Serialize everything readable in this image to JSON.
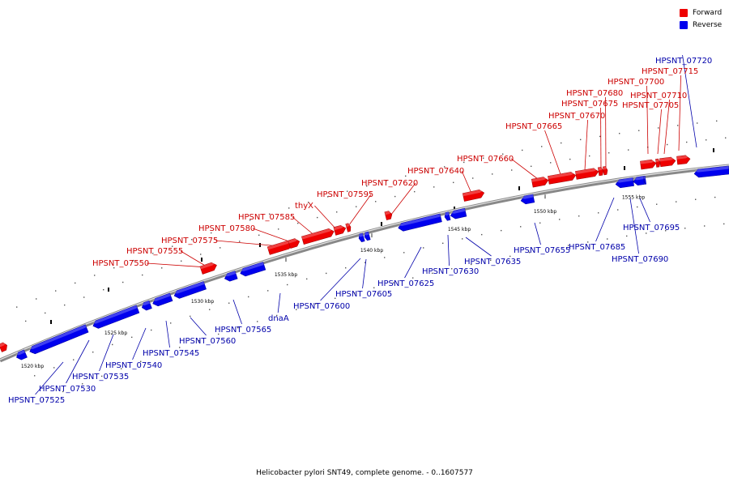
{
  "legend": [
    {
      "label": "Forward",
      "color": "#ee0000"
    },
    {
      "label": "Reverse",
      "color": "#0000ee"
    }
  ],
  "caption": "Helicobacter pylori SNT49, complete genome. - 0..1607577",
  "colors": {
    "forward": "#ee0000",
    "reverse": "#0000ee",
    "backbone": "#888888",
    "forward_label": "#cc0000",
    "reverse_label": "#0000aa"
  },
  "kbp_ticks": [
    "1520 kbp",
    "1525 kbp",
    "1530 kbp",
    "1535 kbp",
    "1540 kbp",
    "1545 kbp",
    "1550 kbp",
    "1555 kbp"
  ],
  "genes": [
    {
      "name": "HPSNT_07525",
      "strand": "reverse"
    },
    {
      "name": "HPSNT_07530",
      "strand": "reverse"
    },
    {
      "name": "HPSNT_07535",
      "strand": "reverse"
    },
    {
      "name": "HPSNT_07540",
      "strand": "reverse"
    },
    {
      "name": "HPSNT_07545",
      "strand": "reverse"
    },
    {
      "name": "HPSNT_07550",
      "strand": "forward"
    },
    {
      "name": "HPSNT_07555",
      "strand": "forward"
    },
    {
      "name": "HPSNT_07560",
      "strand": "reverse"
    },
    {
      "name": "HPSNT_07565",
      "strand": "reverse"
    },
    {
      "name": "dnaA",
      "strand": "reverse"
    },
    {
      "name": "HPSNT_07575",
      "strand": "forward"
    },
    {
      "name": "HPSNT_07580",
      "strand": "forward"
    },
    {
      "name": "HPSNT_07585",
      "strand": "forward"
    },
    {
      "name": "thyX",
      "strand": "forward"
    },
    {
      "name": "HPSNT_07595",
      "strand": "forward"
    },
    {
      "name": "HPSNT_07600",
      "strand": "reverse"
    },
    {
      "name": "HPSNT_07605",
      "strand": "reverse"
    },
    {
      "name": "HPSNT_07620",
      "strand": "forward"
    },
    {
      "name": "HPSNT_07625",
      "strand": "reverse"
    },
    {
      "name": "HPSNT_07630",
      "strand": "reverse"
    },
    {
      "name": "HPSNT_07635",
      "strand": "reverse"
    },
    {
      "name": "HPSNT_07640",
      "strand": "forward"
    },
    {
      "name": "HPSNT_07655",
      "strand": "reverse"
    },
    {
      "name": "HPSNT_07660",
      "strand": "forward"
    },
    {
      "name": "HPSNT_07665",
      "strand": "forward"
    },
    {
      "name": "HPSNT_07670",
      "strand": "forward"
    },
    {
      "name": "HPSNT_07675",
      "strand": "forward"
    },
    {
      "name": "HPSNT_07680",
      "strand": "forward"
    },
    {
      "name": "HPSNT_07685",
      "strand": "reverse"
    },
    {
      "name": "HPSNT_07690",
      "strand": "reverse"
    },
    {
      "name": "HPSNT_07695",
      "strand": "reverse"
    },
    {
      "name": "HPSNT_07700",
      "strand": "forward"
    },
    {
      "name": "HPSNT_07705",
      "strand": "forward"
    },
    {
      "name": "HPSNT_07710",
      "strand": "forward"
    },
    {
      "name": "HPSNT_07715",
      "strand": "forward"
    },
    {
      "name": "HPSNT_07720",
      "strand": "reverse"
    }
  ]
}
